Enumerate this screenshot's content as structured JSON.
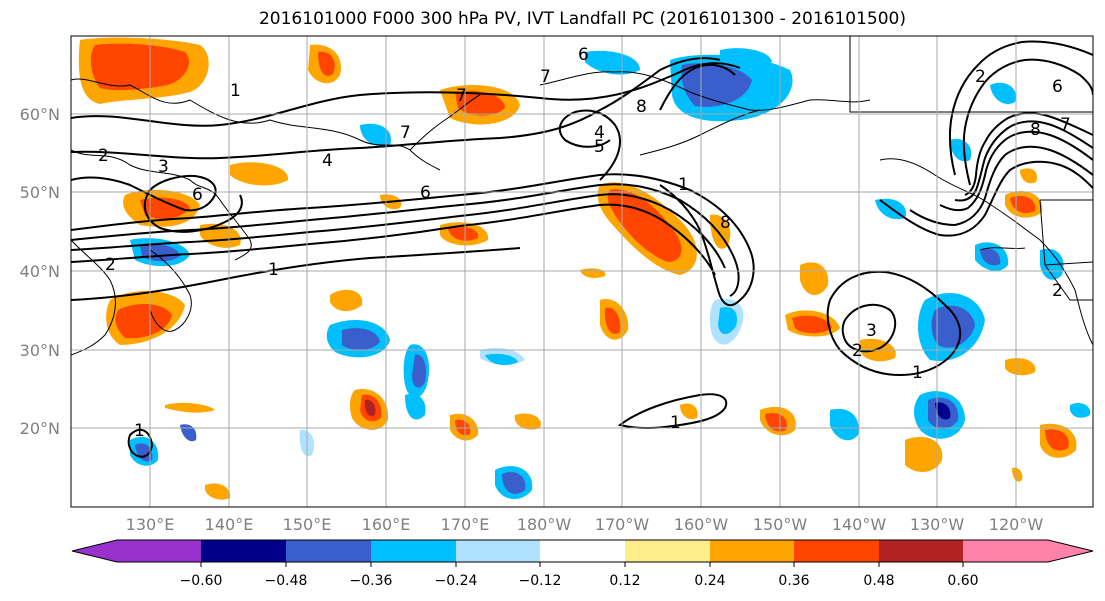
{
  "title": "2016101000 F000 300 hPa PV, IVT Landfall PC (2016101300 - 2016101500)",
  "lat_labels": [
    "60°N",
    "50°N",
    "40°N",
    "30°N",
    "20°N"
  ],
  "lon_labels": [
    "130°E",
    "140°E",
    "150°E",
    "160°E",
    "170°E",
    "180°W",
    "170°W",
    "160°W",
    "150°W",
    "140°W",
    "130°W",
    "120°W"
  ],
  "colorbar": {
    "ticks": [
      "−0.60",
      "−0.48",
      "−0.36",
      "−0.24",
      "−0.12",
      "0.12",
      "0.24",
      "0.36",
      "0.48",
      "0.60"
    ],
    "colors": [
      "#9932cc",
      "#00008b",
      "#3a5fcd",
      "#00bfff",
      "#b0e2ff",
      "#ffffff",
      "#ffec8b",
      "#ffa500",
      "#ff4500",
      "#b22222",
      "#ff82ab"
    ]
  },
  "contour_labels": [
    "2",
    "7",
    "6",
    "7",
    "8",
    "6",
    "2",
    "3",
    "4",
    "6",
    "4",
    "5",
    "7",
    "1",
    "1",
    "2",
    "8",
    "1",
    "1",
    "3",
    "2",
    "1",
    "1",
    "8",
    "6",
    "7",
    "2"
  ]
}
